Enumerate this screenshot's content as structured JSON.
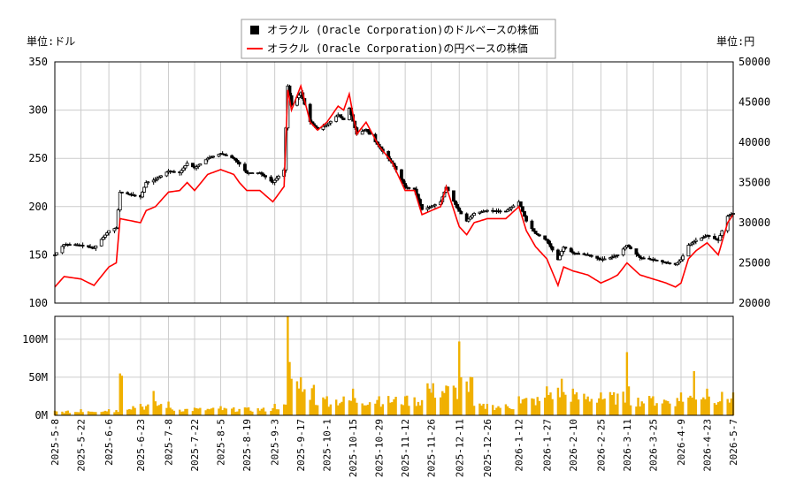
{
  "chart_data": {
    "type": "line",
    "units": {
      "left": "単位:ドル",
      "right": "単位:円"
    },
    "legend": {
      "position": "top-center",
      "items": [
        {
          "label": "オラクル (Oracle Corporation)のドルベースの株価",
          "color": "#000000",
          "marker": "square"
        },
        {
          "label": "オラクル (Oracle Corporation)の円ベースの株価",
          "color": "#ff0000",
          "marker": "line"
        }
      ]
    },
    "y_left": {
      "min": 100,
      "max": 350,
      "ticks": [
        100,
        150,
        200,
        250,
        300,
        350
      ]
    },
    "y_right": {
      "min": 20000,
      "max": 50000,
      "ticks": [
        20000,
        25000,
        30000,
        35000,
        40000,
        45000,
        50000
      ]
    },
    "volume_axis": {
      "max": 130000000,
      "ticks": [
        {
          "value": 0,
          "label": "0M"
        },
        {
          "value": 50000000,
          "label": "50M"
        },
        {
          "value": 100000000,
          "label": "100M"
        }
      ]
    },
    "x_start": "2025-05-08",
    "x_end": "2026-05-07",
    "x_ticks": [
      "2025-5-8",
      "2025-5-22",
      "2025-6-6",
      "2025-6-23",
      "2025-7-8",
      "2025-7-22",
      "2025-8-5",
      "2025-8-19",
      "2025-9-3",
      "2025-9-17",
      "2025-10-1",
      "2025-10-15",
      "2025-10-29",
      "2025-11-12",
      "2025-11-26",
      "2025-12-11",
      "2025-12-26",
      "2026-1-12",
      "2026-1-27",
      "2026-2-10",
      "2026-2-25",
      "2026-3-11",
      "2026-3-25",
      "2026-4-9",
      "2026-4-23",
      "2026-5-7"
    ],
    "grid": true,
    "usd_close": [
      [
        "2025-05-08",
        150
      ],
      [
        "2025-05-13",
        161
      ],
      [
        "2025-05-22",
        160
      ],
      [
        "2025-05-29",
        157
      ],
      [
        "2025-06-06",
        175
      ],
      [
        "2025-06-10",
        178
      ],
      [
        "2025-06-12",
        215
      ],
      [
        "2025-06-23",
        210
      ],
      [
        "2025-06-26",
        225
      ],
      [
        "2025-07-01",
        228
      ],
      [
        "2025-07-08",
        237
      ],
      [
        "2025-07-14",
        235
      ],
      [
        "2025-07-18",
        245
      ],
      [
        "2025-07-22",
        240
      ],
      [
        "2025-07-29",
        250
      ],
      [
        "2025-08-05",
        255
      ],
      [
        "2025-08-12",
        250
      ],
      [
        "2025-08-15",
        244
      ],
      [
        "2025-08-19",
        235
      ],
      [
        "2025-08-26",
        235
      ],
      [
        "2025-09-02",
        225
      ],
      [
        "2025-09-08",
        238
      ],
      [
        "2025-09-10",
        325
      ],
      [
        "2025-09-12",
        305
      ],
      [
        "2025-09-17",
        318
      ],
      [
        "2025-09-22",
        288
      ],
      [
        "2025-09-26",
        280
      ],
      [
        "2025-10-01",
        285
      ],
      [
        "2025-10-07",
        295
      ],
      [
        "2025-10-10",
        290
      ],
      [
        "2025-10-13",
        302
      ],
      [
        "2025-10-17",
        275
      ],
      [
        "2025-10-22",
        280
      ],
      [
        "2025-10-29",
        262
      ],
      [
        "2025-11-05",
        245
      ],
      [
        "2025-11-10",
        228
      ],
      [
        "2025-11-12",
        220
      ],
      [
        "2025-11-17",
        218
      ],
      [
        "2025-11-21",
        197
      ],
      [
        "2025-11-26",
        200
      ],
      [
        "2025-12-01",
        205
      ],
      [
        "2025-12-04",
        220
      ],
      [
        "2025-12-11",
        195
      ],
      [
        "2025-12-15",
        185
      ],
      [
        "2025-12-19",
        193
      ],
      [
        "2025-12-26",
        196
      ],
      [
        "2026-01-05",
        195
      ],
      [
        "2026-01-12",
        205
      ],
      [
        "2026-01-16",
        185
      ],
      [
        "2026-01-21",
        172
      ],
      [
        "2026-01-27",
        165
      ],
      [
        "2026-02-02",
        145
      ],
      [
        "2026-02-05",
        158
      ],
      [
        "2026-02-10",
        152
      ],
      [
        "2026-02-18",
        150
      ],
      [
        "2026-02-25",
        145
      ],
      [
        "2026-03-02",
        147
      ],
      [
        "2026-03-06",
        150
      ],
      [
        "2026-03-11",
        160
      ],
      [
        "2026-03-18",
        147
      ],
      [
        "2026-03-25",
        145
      ],
      [
        "2026-04-01",
        142
      ],
      [
        "2026-04-06",
        140
      ],
      [
        "2026-04-09",
        145
      ],
      [
        "2026-04-13",
        160
      ],
      [
        "2026-04-17",
        165
      ],
      [
        "2026-04-23",
        170
      ],
      [
        "2026-04-29",
        165
      ],
      [
        "2026-05-04",
        190
      ],
      [
        "2026-05-07",
        193
      ]
    ],
    "jpy_close": [
      [
        "2025-05-08",
        22000
      ],
      [
        "2025-05-13",
        23300
      ],
      [
        "2025-05-22",
        23000
      ],
      [
        "2025-05-29",
        22200
      ],
      [
        "2025-06-06",
        24500
      ],
      [
        "2025-06-10",
        25000
      ],
      [
        "2025-06-12",
        30500
      ],
      [
        "2025-06-23",
        30000
      ],
      [
        "2025-06-26",
        31500
      ],
      [
        "2025-07-01",
        32000
      ],
      [
        "2025-07-08",
        33800
      ],
      [
        "2025-07-14",
        34000
      ],
      [
        "2025-07-18",
        35000
      ],
      [
        "2025-07-22",
        34000
      ],
      [
        "2025-07-29",
        36000
      ],
      [
        "2025-08-05",
        36600
      ],
      [
        "2025-08-12",
        36000
      ],
      [
        "2025-08-15",
        35000
      ],
      [
        "2025-08-19",
        34000
      ],
      [
        "2025-08-26",
        34000
      ],
      [
        "2025-09-02",
        32600
      ],
      [
        "2025-09-08",
        34500
      ],
      [
        "2025-09-10",
        46500
      ],
      [
        "2025-09-12",
        44000
      ],
      [
        "2025-09-17",
        47000
      ],
      [
        "2025-09-22",
        42500
      ],
      [
        "2025-09-26",
        41500
      ],
      [
        "2025-10-01",
        42500
      ],
      [
        "2025-10-07",
        44500
      ],
      [
        "2025-10-10",
        44000
      ],
      [
        "2025-10-13",
        46000
      ],
      [
        "2025-10-17",
        41000
      ],
      [
        "2025-10-22",
        42500
      ],
      [
        "2025-10-29",
        39500
      ],
      [
        "2025-11-05",
        37500
      ],
      [
        "2025-11-10",
        35000
      ],
      [
        "2025-11-12",
        34000
      ],
      [
        "2025-11-17",
        34000
      ],
      [
        "2025-11-21",
        31000
      ],
      [
        "2025-11-26",
        31500
      ],
      [
        "2025-12-01",
        32000
      ],
      [
        "2025-12-04",
        34500
      ],
      [
        "2025-12-11",
        29500
      ],
      [
        "2025-12-15",
        28500
      ],
      [
        "2025-12-19",
        30000
      ],
      [
        "2025-12-26",
        30500
      ],
      [
        "2026-01-05",
        30500
      ],
      [
        "2026-01-12",
        32000
      ],
      [
        "2026-01-16",
        29000
      ],
      [
        "2026-01-21",
        27000
      ],
      [
        "2026-01-27",
        25500
      ],
      [
        "2026-02-02",
        22200
      ],
      [
        "2026-02-05",
        24500
      ],
      [
        "2026-02-10",
        24000
      ],
      [
        "2026-02-18",
        23500
      ],
      [
        "2026-02-25",
        22500
      ],
      [
        "2026-03-02",
        23000
      ],
      [
        "2026-03-06",
        23500
      ],
      [
        "2026-03-11",
        25000
      ],
      [
        "2026-03-18",
        23500
      ],
      [
        "2026-03-25",
        23000
      ],
      [
        "2026-04-01",
        22500
      ],
      [
        "2026-04-06",
        22000
      ],
      [
        "2026-04-09",
        22500
      ],
      [
        "2026-04-13",
        25500
      ],
      [
        "2026-04-17",
        26500
      ],
      [
        "2026-04-23",
        27500
      ],
      [
        "2026-04-29",
        26000
      ],
      [
        "2026-05-04",
        30000
      ],
      [
        "2026-05-07",
        31000
      ]
    ],
    "volume": [
      [
        "2025-05-08",
        6000000
      ],
      [
        "2025-05-22",
        8000000
      ],
      [
        "2025-06-06",
        8000000
      ],
      [
        "2025-06-12",
        55000000
      ],
      [
        "2025-06-13",
        52000000
      ],
      [
        "2025-06-23",
        15000000
      ],
      [
        "2025-06-30",
        32000000
      ],
      [
        "2025-07-08",
        18000000
      ],
      [
        "2025-07-22",
        10000000
      ],
      [
        "2025-08-05",
        12000000
      ],
      [
        "2025-08-19",
        10000000
      ],
      [
        "2025-09-03",
        15000000
      ],
      [
        "2025-09-10",
        130000000
      ],
      [
        "2025-09-11",
        70000000
      ],
      [
        "2025-09-12",
        48000000
      ],
      [
        "2025-09-17",
        50000000
      ],
      [
        "2025-09-24",
        40000000
      ],
      [
        "2025-10-01",
        25000000
      ],
      [
        "2025-10-15",
        35000000
      ],
      [
        "2025-10-29",
        25000000
      ],
      [
        "2025-11-12",
        25000000
      ],
      [
        "2025-11-24",
        42000000
      ],
      [
        "2025-12-11",
        97000000
      ],
      [
        "2025-12-12",
        50000000
      ],
      [
        "2025-12-18",
        50000000
      ],
      [
        "2025-12-26",
        15000000
      ],
      [
        "2026-01-12",
        25000000
      ],
      [
        "2026-01-27",
        38000000
      ],
      [
        "2026-02-04",
        48000000
      ],
      [
        "2026-02-10",
        35000000
      ],
      [
        "2026-02-25",
        30000000
      ],
      [
        "2026-03-11",
        83000000
      ],
      [
        "2026-03-12",
        38000000
      ],
      [
        "2026-03-25",
        25000000
      ],
      [
        "2026-04-09",
        30000000
      ],
      [
        "2026-04-16",
        58000000
      ],
      [
        "2026-04-23",
        35000000
      ],
      [
        "2026-05-07",
        30000000
      ]
    ]
  }
}
